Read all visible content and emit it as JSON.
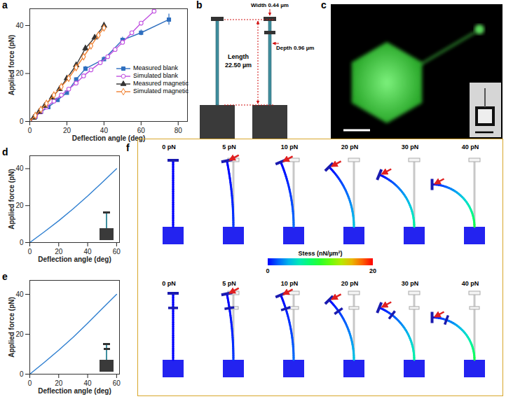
{
  "chart_data": [
    {
      "type": "line",
      "title": "a",
      "xlabel": "Deflection angle (deg)",
      "ylabel": "Applied force (pN)",
      "xlim": [
        0,
        85
      ],
      "xticks": [
        0,
        20,
        40,
        60,
        80
      ],
      "ylim": [
        0,
        47
      ],
      "yticks": [
        0,
        20,
        40
      ],
      "legend": "right",
      "series": [
        {
          "name": "Measured blank",
          "color": "#2f6fbf",
          "marker": "square",
          "x": [
            0,
            3,
            6,
            10,
            15,
            20,
            25,
            30,
            40,
            50,
            60,
            75
          ],
          "values": [
            0,
            2,
            4,
            6,
            9,
            12,
            17.5,
            22,
            26,
            34,
            37,
            42.5
          ],
          "errors": [
            0,
            0.3,
            0.5,
            0.5,
            0.7,
            0.8,
            0.8,
            1,
            1,
            1.2,
            1.2,
            2.3
          ]
        },
        {
          "name": "Simulated blank",
          "color": "#c050e0",
          "marker": "circle-open",
          "x": [
            0,
            3,
            6,
            9,
            13,
            17,
            21,
            25,
            29,
            33,
            38,
            42,
            46,
            50,
            55,
            60,
            67
          ],
          "values": [
            0,
            2,
            4,
            6,
            8.5,
            11,
            13.5,
            16,
            19,
            21.5,
            24.5,
            27,
            30,
            33,
            37,
            41,
            46
          ]
        },
        {
          "name": "Measured magnetic",
          "color": "#333333",
          "marker": "triangle",
          "x": [
            0,
            2,
            5,
            8,
            12,
            16,
            20,
            25,
            30,
            35,
            40
          ],
          "values": [
            0,
            1.5,
            4,
            6.5,
            10,
            13.5,
            18,
            23.5,
            30.5,
            35,
            40
          ],
          "errors": [
            0,
            0.3,
            0.5,
            0.5,
            0.7,
            0.8,
            0.8,
            1,
            1.2,
            1.2,
            1.3
          ]
        },
        {
          "name": "Simulated magnetic",
          "color": "#f08030",
          "marker": "diamond-open",
          "x": [
            0,
            3,
            6,
            9,
            13,
            17,
            21,
            25,
            29,
            33,
            37,
            40
          ],
          "values": [
            0,
            2.5,
            5,
            7.5,
            11,
            14.5,
            18,
            22.5,
            27,
            31.5,
            36,
            39
          ]
        }
      ]
    },
    {
      "type": "line",
      "title": "d",
      "xlabel": "Deflection angle (deg)",
      "ylabel": "Applied force (pN)",
      "xlim": [
        0,
        62
      ],
      "xticks": [
        0,
        20,
        40,
        60
      ],
      "ylim": [
        0,
        47
      ],
      "yticks": [
        0,
        20,
        40
      ],
      "series": [
        {
          "color": "#2f7fd0",
          "x": [
            0,
            10,
            20,
            30,
            40,
            50,
            60
          ],
          "values": [
            0,
            5.8,
            11.8,
            18.3,
            25.2,
            32.5,
            40
          ]
        }
      ]
    },
    {
      "type": "line",
      "title": "e",
      "xlabel": "Deflection angle (deg)",
      "ylabel": "Applied force (pN)",
      "xlim": [
        0,
        62
      ],
      "xticks": [
        0,
        20,
        40,
        60
      ],
      "ylim": [
        0,
        47
      ],
      "yticks": [
        0,
        20,
        40
      ],
      "series": [
        {
          "color": "#2f7fd0",
          "x": [
            0,
            10,
            20,
            30,
            40,
            50,
            60
          ],
          "values": [
            0,
            5.9,
            12,
            18.5,
            25.5,
            32.8,
            40
          ]
        }
      ]
    }
  ],
  "panel_b": {
    "label": "b",
    "width": "Width 0.44 µm",
    "length": [
      "Length",
      "22.50 µm"
    ],
    "depth": "Depth 0.96 µm"
  },
  "panel_c": {
    "label": "c"
  },
  "panel_f": {
    "label": "f",
    "forces": [
      0,
      5,
      10,
      20,
      30,
      40
    ],
    "force_labels": [
      "0 pN",
      "5 pN",
      "10 pN",
      "20 pN",
      "30 pN",
      "40 pN"
    ],
    "colorbar": {
      "label": "Stess (nN/µm²)",
      "range": [
        0,
        20
      ],
      "ticks": [
        0,
        20
      ]
    }
  }
}
